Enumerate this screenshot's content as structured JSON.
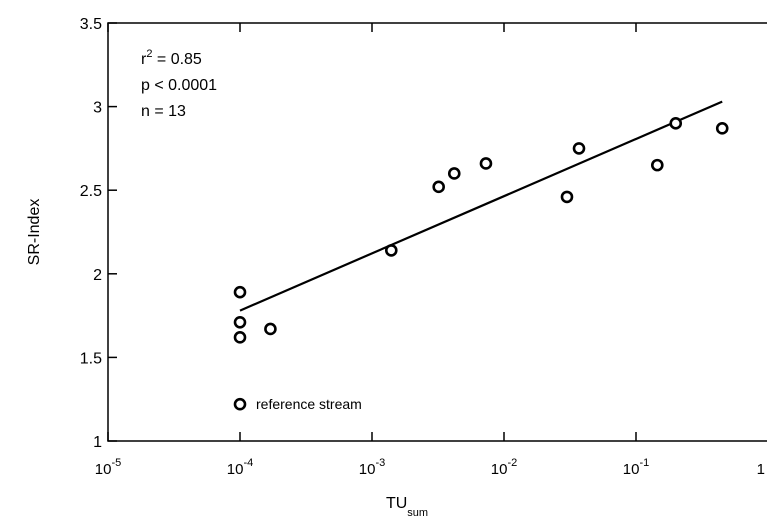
{
  "chart_data": {
    "type": "scatter",
    "x_scale": "log",
    "xlim": [
      1e-05,
      1
    ],
    "ylim": [
      1,
      3.5
    ],
    "xlabel": {
      "main": "TU",
      "sub": "sum"
    },
    "ylabel": "SR-Index",
    "x_ticks": [
      {
        "value": 1e-05,
        "base": "10",
        "exp": "-5"
      },
      {
        "value": 0.0001,
        "base": "10",
        "exp": "-4"
      },
      {
        "value": 0.001,
        "base": "10",
        "exp": "-3"
      },
      {
        "value": 0.01,
        "base": "10",
        "exp": "-2"
      },
      {
        "value": 0.1,
        "base": "10",
        "exp": "-1"
      },
      {
        "value": 1,
        "base": "1",
        "exp": ""
      }
    ],
    "y_ticks": [
      {
        "value": 1,
        "label": "1"
      },
      {
        "value": 1.5,
        "label": "1.5"
      },
      {
        "value": 2,
        "label": "2"
      },
      {
        "value": 2.5,
        "label": "2.5"
      },
      {
        "value": 3,
        "label": "3"
      },
      {
        "value": 3.5,
        "label": "3.5"
      }
    ],
    "points": [
      {
        "x": 0.0001,
        "y": 1.89
      },
      {
        "x": 0.0001,
        "y": 1.71
      },
      {
        "x": 0.0001,
        "y": 1.62
      },
      {
        "x": 0.00017,
        "y": 1.67
      },
      {
        "x": 0.0014,
        "y": 2.14
      },
      {
        "x": 0.0032,
        "y": 2.52
      },
      {
        "x": 0.0042,
        "y": 2.6
      },
      {
        "x": 0.0073,
        "y": 2.66
      },
      {
        "x": 0.03,
        "y": 2.46
      },
      {
        "x": 0.037,
        "y": 2.75
      },
      {
        "x": 0.145,
        "y": 2.65
      },
      {
        "x": 0.2,
        "y": 2.9
      },
      {
        "x": 0.45,
        "y": 2.87
      }
    ],
    "regression_line": {
      "x": [
        0.0001,
        0.45
      ],
      "y": [
        1.78,
        3.03
      ]
    },
    "stats": {
      "r2_prefix": "r",
      "r2_exp": "2",
      "r2_suffix": " = 0.85",
      "p": "p < 0.0001",
      "n": "n = 13"
    },
    "legend": {
      "label": "reference stream",
      "position": "lower-left",
      "marker_x": 0.0001,
      "marker_y": 1.22
    },
    "grid": false,
    "marker_color": "#000000",
    "line_color": "#000000"
  }
}
